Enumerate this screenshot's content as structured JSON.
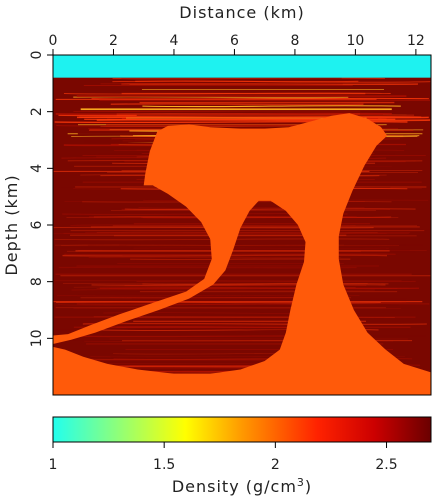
{
  "chart_data": {
    "type": "heatmap",
    "title": "",
    "xlabel": "Distance (km)",
    "ylabel": "Depth (km)",
    "xlim": [
      0,
      12.5
    ],
    "ylim": [
      0,
      12
    ],
    "x_ticks": [
      "0",
      "2",
      "4",
      "6",
      "8",
      "10",
      "12"
    ],
    "y_ticks": [
      "0",
      "2",
      "4",
      "6",
      "8",
      "10"
    ],
    "colorbar": {
      "label_prefix": "Density (g/cm",
      "label_sup": "3",
      "label_suffix": ")",
      "range": [
        1.0,
        2.7
      ],
      "ticks": [
        "1",
        "1.5",
        "2",
        "2.5"
      ],
      "colormap": [
        "#22ffee",
        "#ffff00",
        "#ff9900",
        "#ff2200",
        "#cc0000",
        "#6a0000"
      ]
    },
    "water_density": 1.0,
    "water_depth_km": 0.8,
    "salt_density": 2.15,
    "sediment_density_range": [
      2.3,
      2.7
    ],
    "colors": {
      "water": "#1ef2f0",
      "salt": "#ff5a0a",
      "sediment_dark": "#7a0700",
      "sediment_mid": "#b21000",
      "sediment_bright": "#ff3a0a",
      "sediment_yellow": "#ffb020"
    }
  }
}
